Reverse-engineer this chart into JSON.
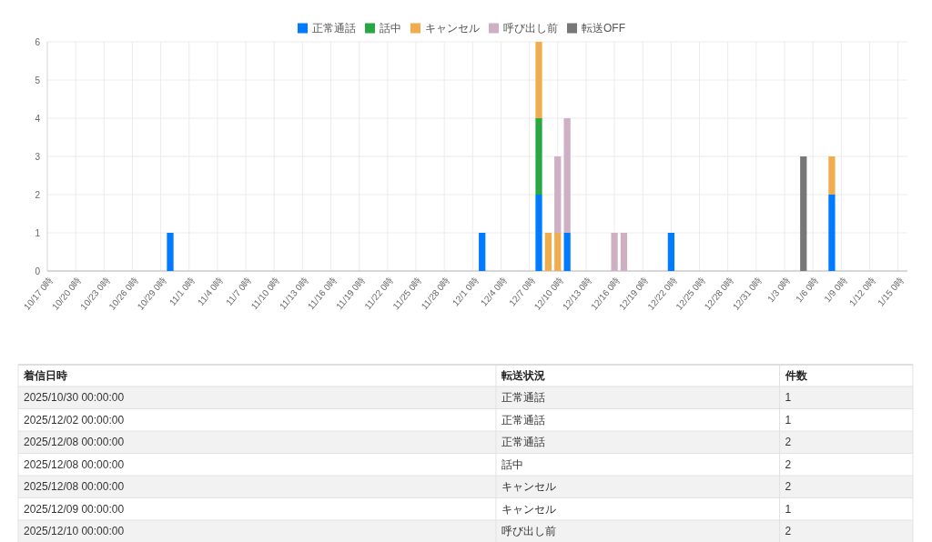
{
  "chart_data": [
    {
      "type": "bar",
      "stacked": true,
      "legend": "top",
      "grid": true,
      "x": [
        "2025-10-30",
        "2025-12-02",
        "2025-12-08",
        "2025-12-09",
        "2025-12-10",
        "2025-12-11",
        "2025-12-16",
        "2025-12-17",
        "2025-12-22",
        "2026-01-05",
        "2026-01-08"
      ],
      "series": [
        {
          "name": "正常通話",
          "color": "#007bff",
          "values": [
            1,
            1,
            2,
            null,
            null,
            1,
            null,
            null,
            1,
            null,
            2
          ]
        },
        {
          "name": "話中",
          "color": "#28a745",
          "values": [
            null,
            null,
            2,
            null,
            null,
            null,
            null,
            null,
            null,
            null,
            null
          ]
        },
        {
          "name": "キャンセル",
          "color": "#f0ad4e",
          "values": [
            null,
            null,
            2,
            1,
            1,
            null,
            null,
            null,
            null,
            null,
            1
          ]
        },
        {
          "name": "呼び出し前",
          "color": "#cfafc3",
          "values": [
            null,
            null,
            null,
            null,
            2,
            3,
            1,
            1,
            null,
            null,
            null
          ]
        },
        {
          "name": "転送OFF",
          "color": "#777777",
          "values": [
            null,
            null,
            null,
            null,
            null,
            null,
            null,
            null,
            null,
            3,
            null
          ]
        }
      ],
      "xlim": [
        "2025-10-17",
        "2026-01-16"
      ],
      "xticks": [
        {
          "value": "2025-10-17",
          "label": "10/17 0時"
        },
        {
          "value": "2025-10-20",
          "label": "10/20 0時"
        },
        {
          "value": "2025-10-23",
          "label": "10/23 0時"
        },
        {
          "value": "2025-10-26",
          "label": "10/26 0時"
        },
        {
          "value": "2025-10-29",
          "label": "10/29 0時"
        },
        {
          "value": "2025-11-01",
          "label": "11/1 0時"
        },
        {
          "value": "2025-11-04",
          "label": "11/4 0時"
        },
        {
          "value": "2025-11-07",
          "label": "11/7 0時"
        },
        {
          "value": "2025-11-10",
          "label": "11/10 0時"
        },
        {
          "value": "2025-11-13",
          "label": "11/13 0時"
        },
        {
          "value": "2025-11-16",
          "label": "11/16 0時"
        },
        {
          "value": "2025-11-19",
          "label": "11/19 0時"
        },
        {
          "value": "2025-11-22",
          "label": "11/22 0時"
        },
        {
          "value": "2025-11-25",
          "label": "11/25 0時"
        },
        {
          "value": "2025-11-28",
          "label": "11/28 0時"
        },
        {
          "value": "2025-12-01",
          "label": "12/1 0時"
        },
        {
          "value": "2025-12-04",
          "label": "12/4 0時"
        },
        {
          "value": "2025-12-07",
          "label": "12/7 0時"
        },
        {
          "value": "2025-12-10",
          "label": "12/10 0時"
        },
        {
          "value": "2025-12-13",
          "label": "12/13 0時"
        },
        {
          "value": "2025-12-16",
          "label": "12/16 0時"
        },
        {
          "value": "2025-12-19",
          "label": "12/19 0時"
        },
        {
          "value": "2025-12-22",
          "label": "12/22 0時"
        },
        {
          "value": "2025-12-25",
          "label": "12/25 0時"
        },
        {
          "value": "2025-12-28",
          "label": "12/28 0時"
        },
        {
          "value": "2025-12-31",
          "label": "12/31 0時"
        },
        {
          "value": "2026-01-03",
          "label": "1/3 0時"
        },
        {
          "value": "2026-01-06",
          "label": "1/6 0時"
        },
        {
          "value": "2026-01-09",
          "label": "1/9 0時"
        },
        {
          "value": "2026-01-12",
          "label": "1/12 0時"
        },
        {
          "value": "2026-01-15",
          "label": "1/15 0時"
        }
      ],
      "ylim": [
        0,
        6
      ],
      "yticks": [
        0,
        1,
        2,
        3,
        4,
        5,
        6
      ]
    },
    {
      "type": "other",
      "categories": [
        "着信日時",
        "転送状況",
        "件数"
      ],
      "annotations": [
        "2025/10/30 00:00:00",
        "正常通話",
        "1",
        "2025/12/02 00:00:00",
        "正常通話",
        "1",
        "2025/12/08 00:00:00",
        "正常通話",
        "2",
        "2025/12/08 00:00:00",
        "話中",
        "2",
        "2025/12/08 00:00:00",
        "キャンセル",
        "2",
        "2025/12/09 00:00:00",
        "キャンセル",
        "1",
        "2025/12/10 00:00:00",
        "呼び出し前",
        "2"
      ]
    }
  ]
}
